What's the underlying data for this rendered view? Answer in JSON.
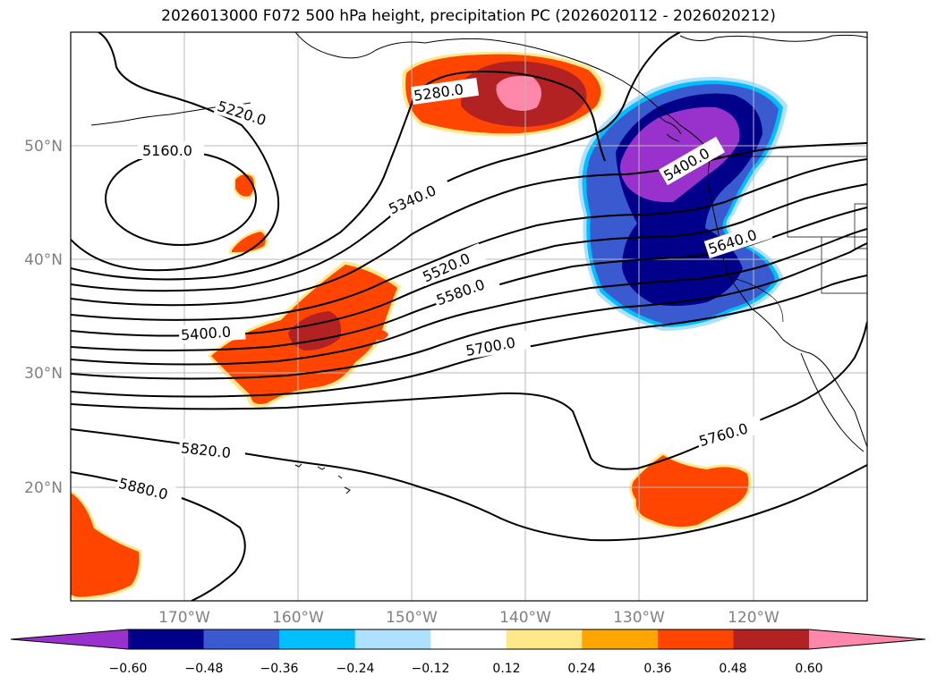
{
  "title": "2026013000 F072 500 hPa height, precipitation PC (2026020112 - 2026020212)",
  "map": {
    "lat_labels": [
      "50°N",
      "40°N",
      "30°N",
      "20°N"
    ],
    "lon_labels": [
      "170°W",
      "160°W",
      "150°W",
      "140°W",
      "130°W",
      "120°W"
    ],
    "contour_labels": [
      "5160.0",
      "5220.0",
      "5280.0",
      "5340.0",
      "5400.0",
      "5400.0",
      "5520.0",
      "5580.0",
      "5640.0",
      "5700.0",
      "5760.0",
      "5820.0",
      "5880.0"
    ]
  },
  "colors": {
    "pos_lightyellow": "#ffe88a",
    "pos_orange": "#ffa500",
    "pos_redorange": "#ff4500",
    "pos_firebrick": "#b22222",
    "pos_pink": "#ff88aa",
    "neg_lightblue": "#aee0ff",
    "neg_deepsky": "#00bfff",
    "neg_royal": "#3a5bd0",
    "neg_navy": "#00008b",
    "neg_purple": "#9932cc"
  },
  "colorbar": {
    "ticks": [
      "−0.60",
      "−0.48",
      "−0.36",
      "−0.24",
      "−0.12",
      "0.12",
      "0.24",
      "0.36",
      "0.48",
      "0.60"
    ],
    "segments": [
      "#9932cc",
      "#00008b",
      "#3a5bd0",
      "#00bfff",
      "#aee0ff",
      "#ffffff",
      "#ffe88a",
      "#ffa500",
      "#ff4500",
      "#b22222",
      "#ff88aa"
    ]
  }
}
